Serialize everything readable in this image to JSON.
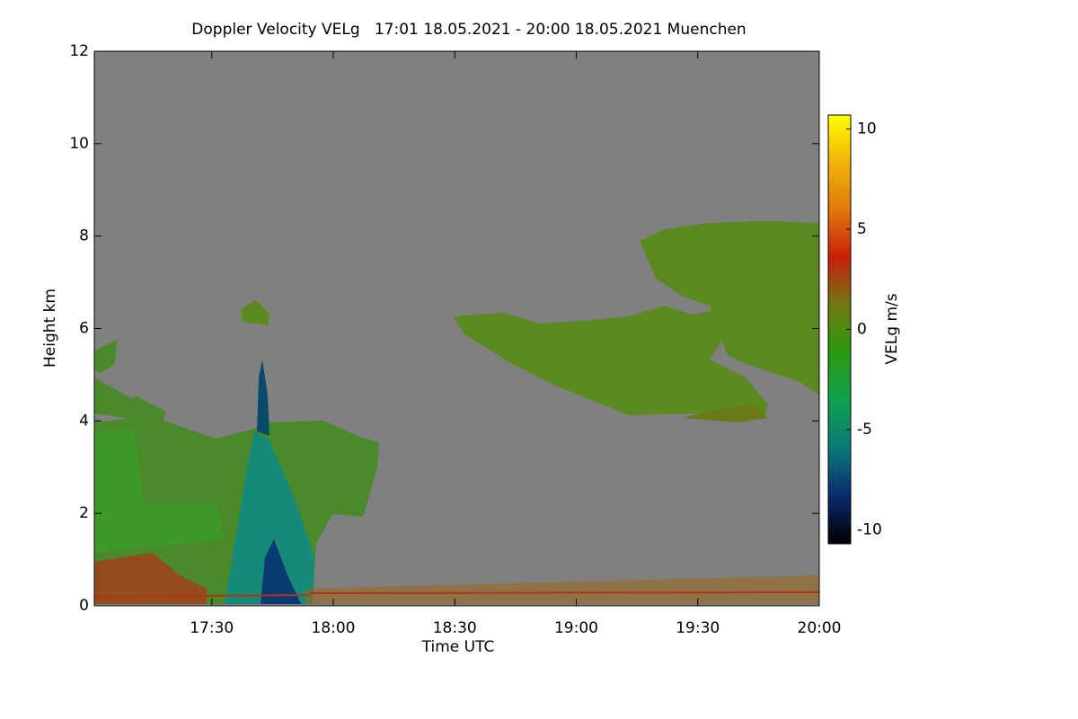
{
  "chart_data": {
    "type": "heatmap",
    "title": "Doppler Velocity VELg   17:01 18.05.2021 - 20:00 18.05.2021 Muenchen",
    "x_label": "Time UTC",
    "y_label": "Height km",
    "xlim": [
      "17:01",
      "20:00"
    ],
    "xticks": [
      "17:30",
      "18:00",
      "18:30",
      "19:00",
      "19:30",
      "20:00"
    ],
    "ylim": [
      0,
      12
    ],
    "yticks": [
      0,
      2,
      4,
      6,
      8,
      10,
      12
    ],
    "colorbar_label": "VELg m/s",
    "clim": [
      -10.7,
      10.7
    ],
    "cticks": [
      -10,
      -5,
      0,
      5,
      10
    ],
    "colormap": [
      "#000000",
      "#0a2a6e",
      "#0a7a78",
      "#10a050",
      "#2a9a10",
      "#6e7a10",
      "#c81e0a",
      "#e0780a",
      "#f0b40a",
      "#ffff00"
    ]
  }
}
